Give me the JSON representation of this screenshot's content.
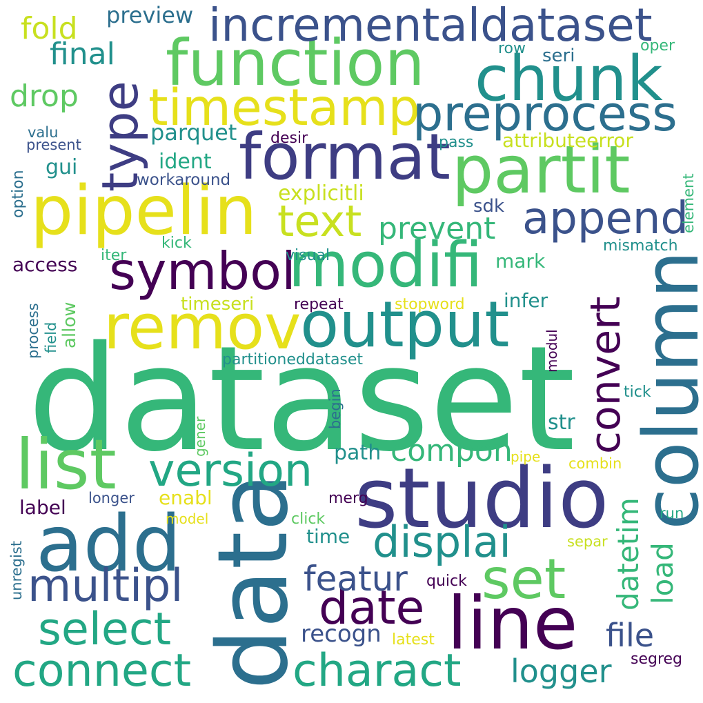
{
  "palette": {
    "dark_purple": "#440154",
    "indigo": "#3e3d83",
    "slate_blue": "#3b528b",
    "steel_blue": "#2c6f8e",
    "teal": "#21908c",
    "green_teal": "#22a784",
    "green": "#35b779",
    "light_green": "#5ec962",
    "lime": "#90d743",
    "yellow_green": "#c8e020",
    "yellow": "#e6e01b"
  },
  "words": [
    {
      "text": "dataset"
    },
    {
      "text": "data"
    },
    {
      "text": "studio"
    },
    {
      "text": "column"
    },
    {
      "text": "add"
    },
    {
      "text": "list"
    },
    {
      "text": "line"
    },
    {
      "text": "function"
    },
    {
      "text": "format"
    },
    {
      "text": "pipelin"
    },
    {
      "text": "partit"
    },
    {
      "text": "output"
    },
    {
      "text": "modifi"
    },
    {
      "text": "remov"
    },
    {
      "text": "chunk"
    },
    {
      "text": "incrementaldataset"
    },
    {
      "text": "timestamp"
    },
    {
      "text": "preprocess"
    },
    {
      "text": "type"
    },
    {
      "text": "symbol"
    },
    {
      "text": "set"
    },
    {
      "text": "version"
    },
    {
      "text": "connect"
    },
    {
      "text": "charact"
    },
    {
      "text": "convert"
    },
    {
      "text": "multipl"
    },
    {
      "text": "select"
    },
    {
      "text": "date"
    },
    {
      "text": "append"
    },
    {
      "text": "text"
    },
    {
      "text": "displai"
    },
    {
      "text": "compon"
    },
    {
      "text": "prevent"
    },
    {
      "text": "featur"
    },
    {
      "text": "logger"
    },
    {
      "text": "file"
    },
    {
      "text": "datetim"
    },
    {
      "text": "load"
    },
    {
      "text": "fold"
    },
    {
      "text": "final"
    },
    {
      "text": "drop"
    },
    {
      "text": "recogn"
    },
    {
      "text": "preview"
    },
    {
      "text": "parquet"
    },
    {
      "text": "attributeerror"
    },
    {
      "text": "explicitli"
    },
    {
      "text": "ident"
    },
    {
      "text": "gui"
    },
    {
      "text": "workaround"
    },
    {
      "text": "sdk"
    },
    {
      "text": "mark"
    },
    {
      "text": "infer"
    },
    {
      "text": "timeseri"
    },
    {
      "text": "str"
    },
    {
      "text": "path"
    },
    {
      "text": "access"
    },
    {
      "text": "allow"
    },
    {
      "text": "enabl"
    },
    {
      "text": "label"
    },
    {
      "text": "time"
    },
    {
      "text": "partitioneddataset"
    },
    {
      "text": "seri"
    },
    {
      "text": "row"
    },
    {
      "text": "oper"
    },
    {
      "text": "pass"
    },
    {
      "text": "desir"
    },
    {
      "text": "valu"
    },
    {
      "text": "present"
    },
    {
      "text": "option"
    },
    {
      "text": "kick"
    },
    {
      "text": "iter"
    },
    {
      "text": "visual"
    },
    {
      "text": "mismatch"
    },
    {
      "text": "element"
    },
    {
      "text": "repeat"
    },
    {
      "text": "stopword"
    },
    {
      "text": "process"
    },
    {
      "text": "field"
    },
    {
      "text": "modul"
    },
    {
      "text": "begin"
    },
    {
      "text": "tick"
    },
    {
      "text": "gener"
    },
    {
      "text": "pipe"
    },
    {
      "text": "combin"
    },
    {
      "text": "longer"
    },
    {
      "text": "merg"
    },
    {
      "text": "model"
    },
    {
      "text": "click"
    },
    {
      "text": "run"
    },
    {
      "text": "unregist"
    },
    {
      "text": "separ"
    },
    {
      "text": "quick"
    },
    {
      "text": "latest"
    },
    {
      "text": "segreg"
    }
  ]
}
